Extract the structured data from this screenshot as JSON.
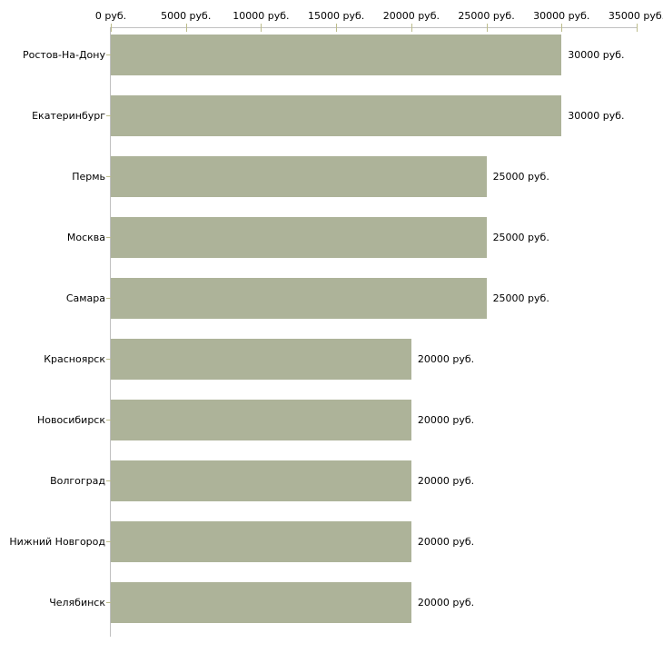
{
  "chart_data": {
    "type": "bar",
    "orientation": "horizontal",
    "title": "",
    "xlabel": "",
    "ylabel": "",
    "unit": "руб.",
    "categories": [
      "Ростов-На-Дону",
      "Екатеринбург",
      "Пермь",
      "Москва",
      "Самара",
      "Красноярск",
      "Новосибирск",
      "Волгоград",
      "Нижний Новгород",
      "Челябинск"
    ],
    "values": [
      30000,
      30000,
      25000,
      25000,
      25000,
      20000,
      20000,
      20000,
      20000,
      20000
    ],
    "value_labels": [
      "30000 руб.",
      "30000 руб.",
      "25000 руб.",
      "25000 руб.",
      "25000 руб.",
      "20000 руб.",
      "20000 руб.",
      "20000 руб.",
      "20000 руб.",
      "20000 руб."
    ],
    "x_tick_values": [
      0,
      5000,
      10000,
      15000,
      20000,
      25000,
      30000,
      35000
    ],
    "x_tick_labels": [
      "0 руб.",
      "5000 руб.",
      "10000 руб.",
      "15000 руб.",
      "20000 руб.",
      "25000 руб.",
      "30000 руб.",
      "35000 руб."
    ],
    "xlim": [
      0,
      35000
    ],
    "grid": false,
    "legend": false,
    "colors": {
      "bar": "#adb399",
      "axis": "#c0c0c0",
      "tick": "#bdbd8c",
      "text": "#000000",
      "background": "#ffffff"
    }
  }
}
